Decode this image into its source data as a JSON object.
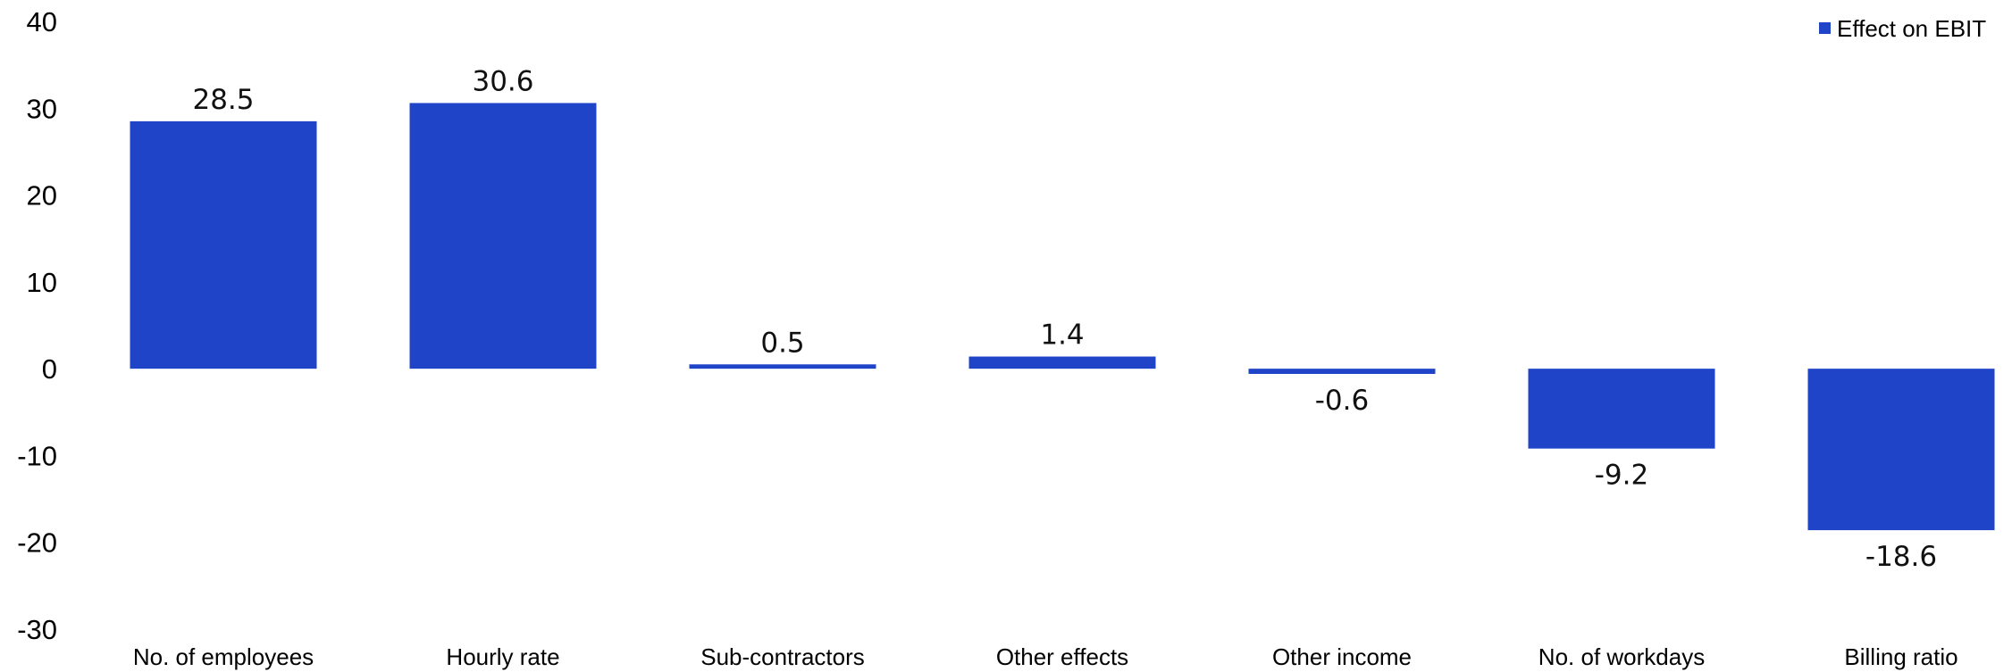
{
  "chart_data": {
    "type": "bar",
    "categories": [
      "No. of employees",
      "Hourly rate",
      "Sub-contractors",
      "Other effects",
      "Other income",
      "No. of workdays",
      "Billing ratio"
    ],
    "series": [
      {
        "name": "Effect on EBIT",
        "values": [
          28.5,
          30.6,
          0.5,
          1.4,
          -0.6,
          -9.2,
          -18.6
        ],
        "color": "#1f44c8"
      }
    ],
    "value_labels": [
      "28.5",
      "30.6",
      "0.5",
      "1.4",
      "-0.6",
      "-9.2",
      "-18.6"
    ],
    "ylim": [
      -30,
      40
    ],
    "yticks": [
      40,
      30,
      20,
      10,
      0,
      -10,
      -20,
      -30
    ],
    "ytick_labels": [
      "40",
      "30",
      "20",
      "10",
      "0",
      "-10",
      "-20",
      "-30"
    ],
    "legend_position": "top-right",
    "grid": false,
    "xlabel": "",
    "ylabel": "",
    "title": ""
  }
}
